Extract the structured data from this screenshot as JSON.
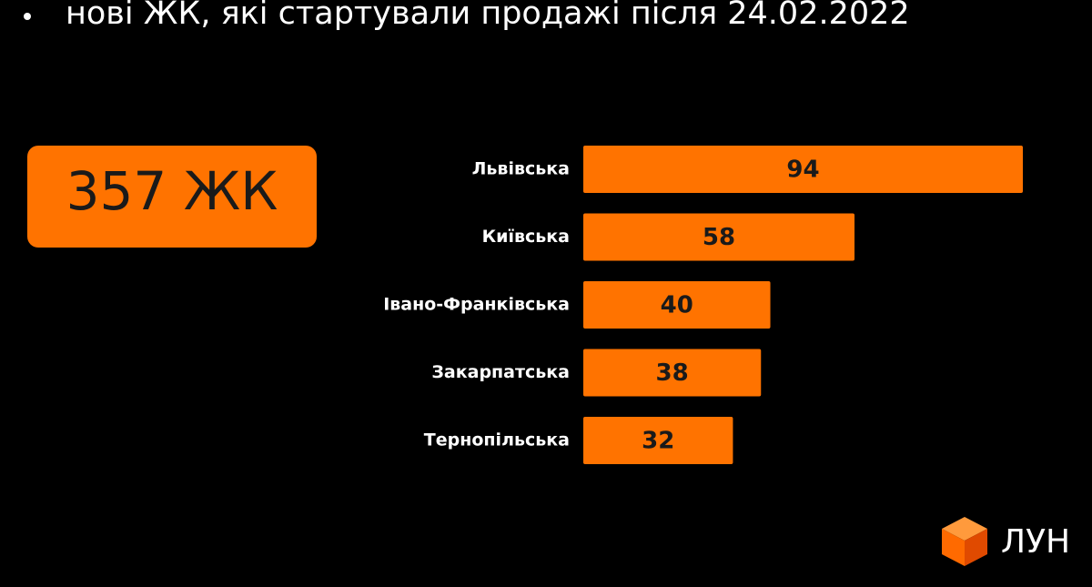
{
  "chart_data": {
    "type": "bar",
    "orientation": "horizontal",
    "title": "нові ЖК, які стартували продажі після 24.02.2022",
    "callout": "357 ЖК",
    "categories": [
      "Львівська",
      "Київська",
      "Івано-Франківська",
      "Закарпатська",
      "Тернопільська"
    ],
    "values": [
      94,
      58,
      40,
      38,
      32
    ],
    "color": "#ff7300"
  },
  "logo": "ЛУН"
}
